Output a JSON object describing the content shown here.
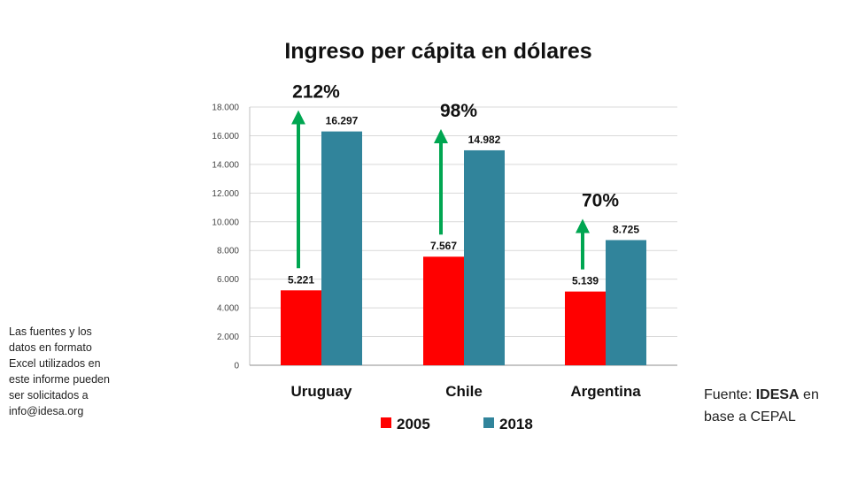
{
  "note_lines": [
    "Las fuentes y los",
    "datos en formato",
    "Excel utilizados en",
    "este informe pueden",
    "ser solicitados a",
    "info@idesa.org"
  ],
  "source": {
    "prefix": "Fuente: ",
    "org": "IDESA",
    "suffix": " en",
    "line2": "base a CEPAL"
  },
  "chart_data": {
    "type": "bar",
    "title": "Ingreso per cápita en dólares",
    "categories": [
      "Uruguay",
      "Chile",
      "Argentina"
    ],
    "series": [
      {
        "name": "2005",
        "color": "#ff0000",
        "values": [
          5221,
          7567,
          5139
        ],
        "labels": [
          "5.221",
          "7.567",
          "5.139"
        ]
      },
      {
        "name": "2018",
        "color": "#31849b",
        "values": [
          16297,
          14982,
          8725
        ],
        "labels": [
          "16.297",
          "14.982",
          "8.725"
        ]
      }
    ],
    "growth_labels": [
      "212%",
      "98%",
      "70%"
    ],
    "arrow_color": "#00a651",
    "ylim": [
      0,
      18000
    ],
    "yticks": [
      0,
      2000,
      4000,
      6000,
      8000,
      10000,
      12000,
      14000,
      16000,
      18000
    ],
    "ytick_labels": [
      "0",
      "2.000",
      "4.000",
      "6.000",
      "8.000",
      "10.000",
      "12.000",
      "14.000",
      "16.000",
      "18.000"
    ],
    "grid": true,
    "legend_position": "bottom"
  }
}
